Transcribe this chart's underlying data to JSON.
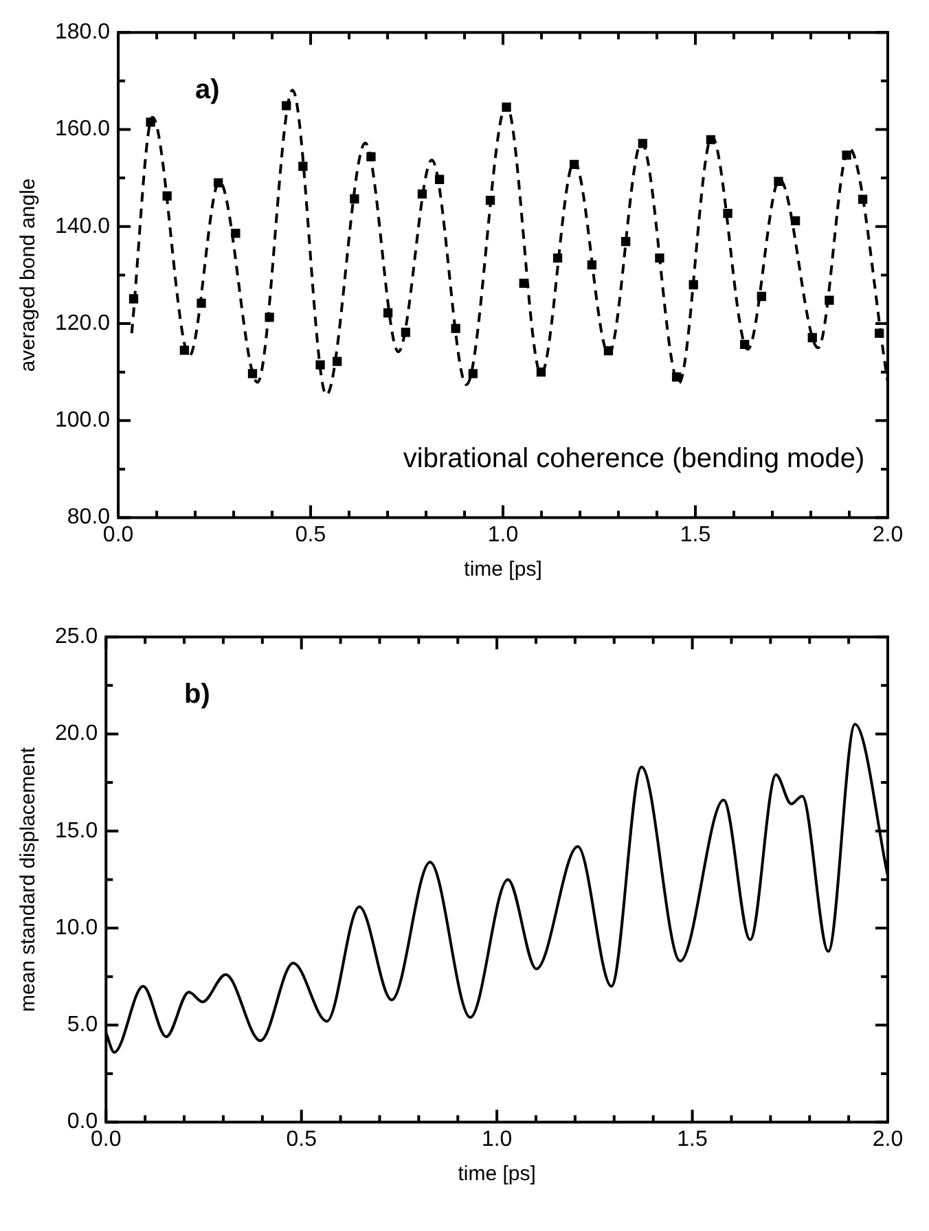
{
  "chart_data": [
    {
      "type": "scatter",
      "xlabel": "time [ps]",
      "ylabel": "averaged bond angle",
      "annotations": [
        "a)",
        "vibrational coherence (bending mode)"
      ],
      "xlim": [
        0,
        2
      ],
      "ylim": [
        80,
        180
      ],
      "xticks": [
        {
          "value": 0,
          "label": "0.0"
        },
        {
          "value": 0.1,
          "label": null
        },
        {
          "value": 0.2,
          "label": null
        },
        {
          "value": 0.3,
          "label": null
        },
        {
          "value": 0.4,
          "label": null
        },
        {
          "value": 0.5,
          "label": "0.5"
        },
        {
          "value": 0.6,
          "label": null
        },
        {
          "value": 0.7,
          "label": null
        },
        {
          "value": 0.8,
          "label": null
        },
        {
          "value": 0.9,
          "label": null
        },
        {
          "value": 1,
          "label": "1.0"
        },
        {
          "value": 1.1,
          "label": null
        },
        {
          "value": 1.2,
          "label": null
        },
        {
          "value": 1.3,
          "label": null
        },
        {
          "value": 1.4,
          "label": null
        },
        {
          "value": 1.5,
          "label": "1.5"
        },
        {
          "value": 1.6,
          "label": null
        },
        {
          "value": 1.7,
          "label": null
        },
        {
          "value": 1.8,
          "label": null
        },
        {
          "value": 1.9,
          "label": null
        },
        {
          "value": 2,
          "label": "2.0"
        }
      ],
      "yticks": [
        {
          "value": 80,
          "label": "80.0"
        },
        {
          "value": 90,
          "label": null
        },
        {
          "value": 100,
          "label": "100.0"
        },
        {
          "value": 110,
          "label": null
        },
        {
          "value": 120,
          "label": "120.0"
        },
        {
          "value": 130,
          "label": null
        },
        {
          "value": 140,
          "label": "140.0"
        },
        {
          "value": 150,
          "label": null
        },
        {
          "value": 160,
          "label": "160.0"
        },
        {
          "value": 170,
          "label": null
        },
        {
          "value": 180,
          "label": "180.0"
        }
      ],
      "series": [
        {
          "color": "#000000",
          "marker": "square",
          "x": [
            0.04,
            0.084,
            0.127,
            0.172,
            0.216,
            0.26,
            0.305,
            0.349,
            0.393,
            0.437,
            0.48,
            0.525,
            0.569,
            0.614,
            0.657,
            0.701,
            0.747,
            0.79,
            0.835,
            0.877,
            0.922,
            0.967,
            1.009,
            1.054,
            1.099,
            1.142,
            1.185,
            1.231,
            1.274,
            1.319,
            1.363,
            1.407,
            1.451,
            1.495,
            1.54,
            1.584,
            1.628,
            1.672,
            1.716,
            1.76,
            1.804,
            1.848,
            1.893,
            1.935,
            1.978
          ],
          "values": [
            125.1,
            161.5,
            146.3,
            114.5,
            124.2,
            149,
            138.6,
            109.7,
            121.3,
            164.9,
            152.4,
            111.5,
            112.2,
            145.7,
            154.4,
            122.2,
            118.2,
            146.7,
            149.7,
            119,
            109.7,
            145.4,
            164.6,
            128.3,
            110,
            133.5,
            152.8,
            132.1,
            114.4,
            136.9,
            157.1,
            133.5,
            109,
            128,
            157.9,
            142.7,
            115.7,
            125.6,
            149.3,
            141.2,
            117.1,
            124.8,
            154.7,
            145.6,
            118
          ]
        },
        {
          "type": "line",
          "color": "#000000",
          "line_style": "dashed",
          "marker": "none",
          "x": [
            0.035,
            0.089,
            0.185,
            0.263,
            0.362,
            0.453,
            0.541,
            0.642,
            0.728,
            0.815,
            0.905,
            1.009,
            1.099,
            1.185,
            1.275,
            1.36,
            1.457,
            1.543,
            1.636,
            1.719,
            1.819,
            1.899,
            2
          ],
          "values": [
            118,
            162.5,
            113.4,
            149.3,
            107.9,
            168.1,
            105.3,
            157.2,
            114.2,
            153.7,
            107.4,
            165.1,
            109.6,
            153.4,
            113.7,
            157.3,
            107.7,
            158.5,
            114.7,
            149.7,
            115,
            156.2,
            108
          ]
        }
      ]
    },
    {
      "type": "line",
      "xlabel": "time [ps]",
      "ylabel": "mean standard displacement",
      "annotations": [
        "b)"
      ],
      "xlim": [
        0,
        2
      ],
      "ylim": [
        0,
        25
      ],
      "xticks": [
        {
          "value": 0,
          "label": "0.0"
        },
        {
          "value": 0.1,
          "label": null
        },
        {
          "value": 0.2,
          "label": null
        },
        {
          "value": 0.3,
          "label": null
        },
        {
          "value": 0.4,
          "label": null
        },
        {
          "value": 0.5,
          "label": "0.5"
        },
        {
          "value": 0.6,
          "label": null
        },
        {
          "value": 0.7,
          "label": null
        },
        {
          "value": 0.8,
          "label": null
        },
        {
          "value": 0.9,
          "label": null
        },
        {
          "value": 1,
          "label": "1.0"
        },
        {
          "value": 1.1,
          "label": null
        },
        {
          "value": 1.2,
          "label": null
        },
        {
          "value": 1.3,
          "label": null
        },
        {
          "value": 1.4,
          "label": null
        },
        {
          "value": 1.5,
          "label": "1.5"
        },
        {
          "value": 1.6,
          "label": null
        },
        {
          "value": 1.7,
          "label": null
        },
        {
          "value": 1.8,
          "label": null
        },
        {
          "value": 1.9,
          "label": null
        },
        {
          "value": 2,
          "label": "2.0"
        }
      ],
      "yticks": [
        {
          "value": 0,
          "label": "0.0"
        },
        {
          "value": 2.5,
          "label": null
        },
        {
          "value": 5,
          "label": "5.0"
        },
        {
          "value": 7.5,
          "label": null
        },
        {
          "value": 10,
          "label": "10.0"
        },
        {
          "value": 12.5,
          "label": null
        },
        {
          "value": 15,
          "label": "15.0"
        },
        {
          "value": 17.5,
          "label": null
        },
        {
          "value": 20,
          "label": "20.0"
        },
        {
          "value": 22.5,
          "label": null
        },
        {
          "value": 25,
          "label": "25.0"
        }
      ],
      "series": [
        {
          "color": "#000000",
          "line_style": "solid",
          "marker": "none",
          "x": [
            0,
            0.021,
            0.095,
            0.154,
            0.212,
            0.247,
            0.306,
            0.395,
            0.479,
            0.565,
            0.648,
            0.731,
            0.829,
            0.932,
            1.028,
            1.101,
            1.207,
            1.293,
            1.37,
            1.469,
            1.58,
            1.648,
            1.714,
            1.753,
            1.781,
            1.848,
            1.916,
            2
          ],
          "values": [
            4.6,
            3.6,
            7,
            4.4,
            6.7,
            6.2,
            7.6,
            4.2,
            8.2,
            5.2,
            11.1,
            6.3,
            13.4,
            5.4,
            12.5,
            7.9,
            14.2,
            7,
            18.3,
            8.3,
            16.6,
            9.4,
            17.9,
            16.4,
            16.8,
            8.8,
            20.5,
            12.7
          ]
        }
      ]
    }
  ]
}
